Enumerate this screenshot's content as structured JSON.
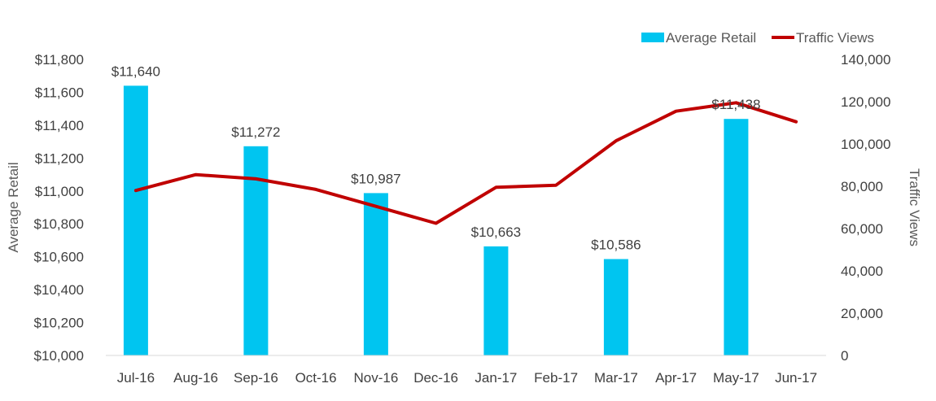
{
  "chart_data": {
    "type": "bar",
    "categories": [
      "Jul-16",
      "Aug-16",
      "Sep-16",
      "Oct-16",
      "Nov-16",
      "Dec-16",
      "Jan-17",
      "Feb-17",
      "Mar-17",
      "Apr-17",
      "May-17",
      "Jun-17"
    ],
    "series": [
      {
        "name": "Average Retail",
        "type": "bar",
        "axis": "left",
        "color": "#00c5f0",
        "values": [
          11640,
          null,
          11272,
          null,
          10987,
          null,
          10663,
          null,
          10586,
          null,
          11438,
          null
        ],
        "data_labels": [
          "$11,640",
          "",
          "$11,272",
          "",
          "$10,987",
          "",
          "$10,663",
          "",
          "$10,586",
          "",
          "$11,438",
          ""
        ]
      },
      {
        "name": "Traffic Views",
        "type": "line",
        "axis": "right",
        "color": "#c00000",
        "values": [
          78000,
          85500,
          83500,
          78500,
          70500,
          62500,
          79500,
          80500,
          101500,
          115500,
          119500,
          110500
        ]
      }
    ],
    "ylabel": "Average Retail",
    "y2label": "Traffic Views",
    "ylim": [
      10000,
      11800
    ],
    "y2lim": [
      0,
      140000
    ],
    "yticks": [
      "$10,000",
      "$10,200",
      "$10,400",
      "$10,600",
      "$10,800",
      "$11,000",
      "$11,200",
      "$11,400",
      "$11,600",
      "$11,800"
    ],
    "y2ticks": [
      "0",
      "20,000",
      "40,000",
      "60,000",
      "80,000",
      "100,000",
      "120,000",
      "140,000"
    ],
    "grid": false,
    "legend": "top-right"
  }
}
